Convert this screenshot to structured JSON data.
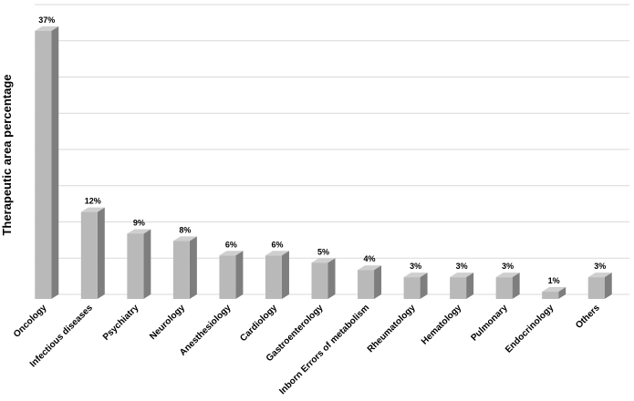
{
  "chart_data": {
    "type": "bar3d",
    "y_label": "Therapeutic area percentage",
    "categories": [
      "Oncology",
      "Infectious diseases",
      "Psychiatry",
      "Neurology",
      "Anesthesiology",
      "Cardiology",
      "Gastroenterology",
      "Inborn Errors of metabolism",
      "Rheumatology",
      "Hematology",
      "Pulmonary",
      "Endocrinology",
      "Others"
    ],
    "values": [
      37,
      12,
      9,
      8,
      6,
      6,
      5,
      4,
      3,
      3,
      3,
      1,
      3
    ],
    "value_labels": [
      "37%",
      "12%",
      "9%",
      "8%",
      "6%",
      "6%",
      "5%",
      "4%",
      "3%",
      "3%",
      "3%",
      "1%",
      "3%"
    ],
    "color": "#b9b9b9",
    "ylim": [
      0,
      40
    ],
    "yticks": [
      0,
      5,
      10,
      15,
      20,
      25,
      30,
      35,
      40
    ],
    "grid": true
  }
}
